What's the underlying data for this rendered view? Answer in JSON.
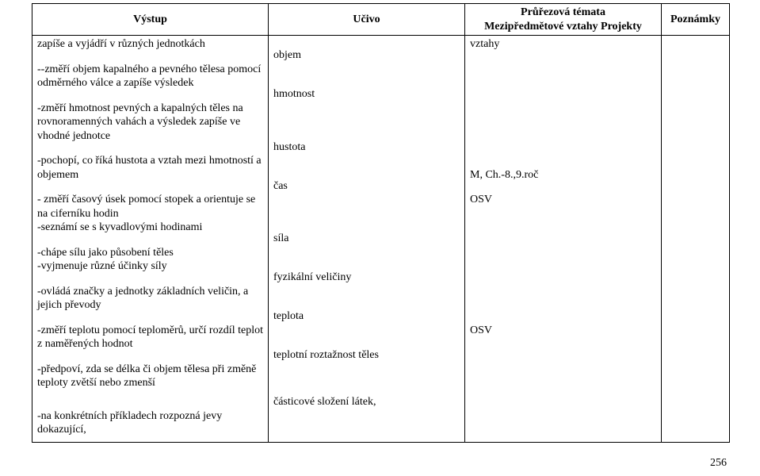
{
  "header": {
    "col1": "Výstup",
    "col2": "Učivo",
    "col3_line1": "Průřezová témata",
    "col3_line2": "Mezipředmětové vztahy Projekty",
    "col4": "Poznámky"
  },
  "rows": [
    {
      "vystup": "zapíše a vyjádří v různých jednotkách",
      "ucivo": "",
      "cross": "vztahy",
      "spacer_after": true
    },
    {
      "vystup": "--změří objem kapalného a pevného tělesa pomocí odměrného válce a zapíše výsledek",
      "ucivo": "objem",
      "cross": "",
      "spacer_after": true
    },
    {
      "vystup": "-změří hmotnost pevných a kapalných těles na rovnoramenných vahách a výsledek zapíše ve vhodné jednotce",
      "ucivo": "hmotnost",
      "cross": "",
      "spacer_after": true
    },
    {
      "vystup": "-pochopí, co říká hustota a vztah mezi hmotností a objemem",
      "ucivo": "hustota",
      "cross": "M, Ch.-8.,9.roč",
      "cross_align_bottom": true,
      "spacer_after": true
    },
    {
      "vystup": "- změří časový úsek pomocí stopek a orientuje se na ciferníku hodin\n-seznámí se s kyvadlovými hodinami",
      "ucivo": "čas",
      "cross": "OSV",
      "spacer_after": true
    },
    {
      "vystup": "-chápe sílu jako působení těles\n-vyjmenuje různé účinky síly",
      "ucivo": "síla",
      "cross": "",
      "spacer_after": true
    },
    {
      "vystup": "-ovládá značky a jednotky základních veličin, a jejich převody",
      "ucivo": "fyzikální veličiny",
      "cross": "",
      "spacer_after": true
    },
    {
      "vystup": "-změří teplotu pomocí teploměrů, určí rozdíl teplot z naměřených hodnot",
      "ucivo": "teplota",
      "cross": "OSV",
      "spacer_after": true
    },
    {
      "vystup": "-předpoví, zda se délka či objem tělesa při změně teploty zvětší nebo zmenší",
      "ucivo": "teplotní roztažnost těles",
      "cross": "",
      "spacer_after": true,
      "extra_spacer": true
    },
    {
      "vystup": "-na konkrétních příkladech rozpozná jevy dokazující,",
      "ucivo": "částicové složení látek,",
      "cross": "",
      "spacer_after": false
    }
  ],
  "page_number": "256"
}
